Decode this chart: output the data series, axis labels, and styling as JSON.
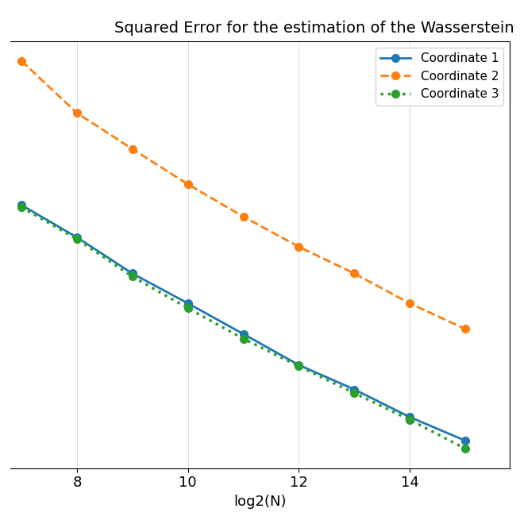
{
  "title": "Squared Error for the estimation of the Wasserstein distance",
  "xlabel": "log2(N)",
  "x_values": [
    7,
    8,
    9,
    10,
    11,
    12,
    13,
    14,
    15
  ],
  "blue_y": [
    0.062,
    0.038,
    0.022,
    0.014,
    0.0088,
    0.0055,
    0.0038,
    0.0025,
    0.00175
  ],
  "orange_y": [
    0.55,
    0.25,
    0.145,
    0.085,
    0.052,
    0.033,
    0.022,
    0.014,
    0.0095
  ],
  "green_y": [
    0.06,
    0.037,
    0.021,
    0.013,
    0.0082,
    0.0054,
    0.0036,
    0.0024,
    0.00155
  ],
  "blue_color": "#1f77b4",
  "orange_color": "#ff7f0e",
  "green_color": "#2ca02c",
  "blue_label": "Coordinate 1",
  "orange_label": "Coordinate 2",
  "green_label": "Coordinate 3",
  "xlim": [
    6.8,
    15.8
  ],
  "xticks": [
    8,
    10,
    12,
    14
  ],
  "figsize": [
    6.55,
    6.55
  ],
  "dpi": 100
}
